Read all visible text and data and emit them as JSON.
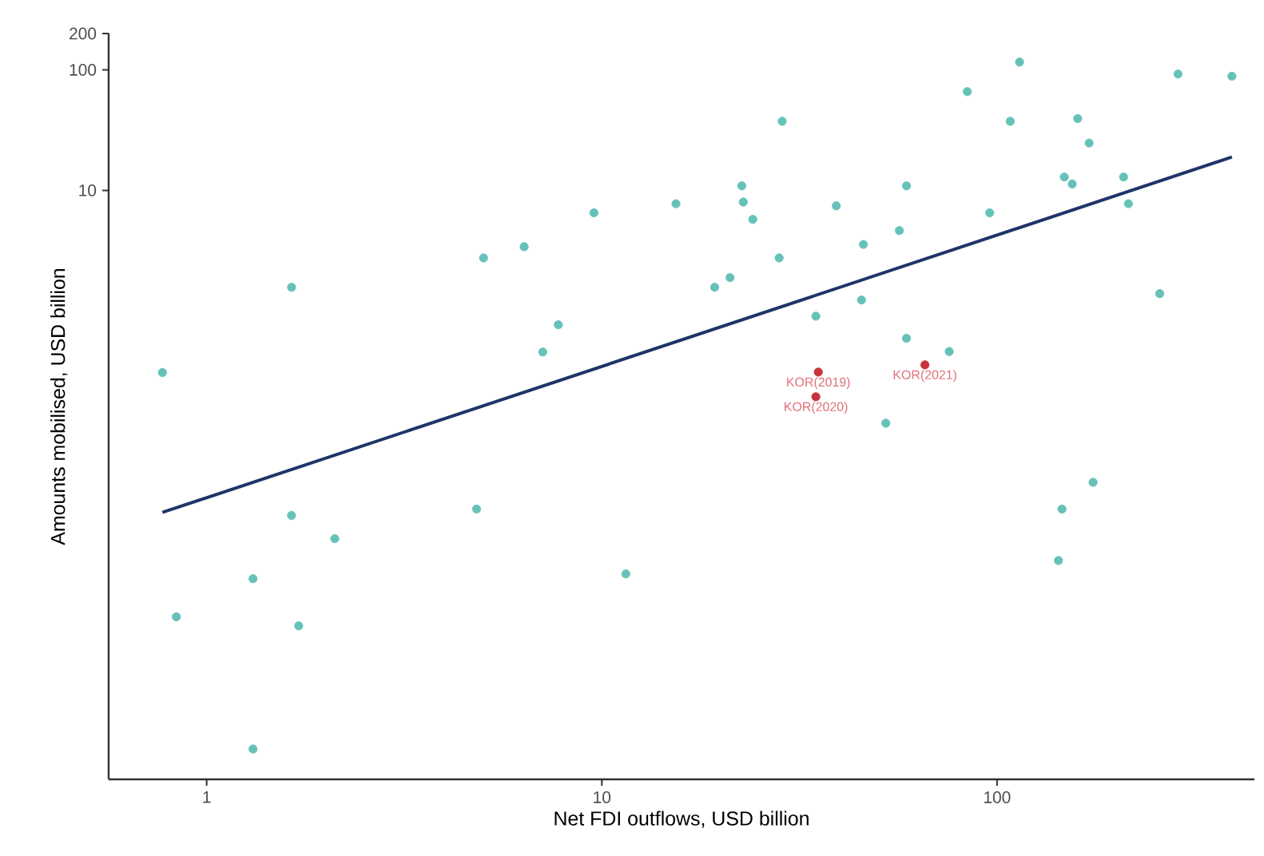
{
  "chart_data": {
    "type": "scatter",
    "xlabel": "Net FDI outflows, USD billion",
    "ylabel": "Amounts mobilised, USD billion",
    "log": "xy",
    "xlim": [
      0.565,
      448
    ],
    "ylim": [
      0.00013,
      200
    ],
    "xticks": [
      1,
      10,
      100
    ],
    "yticks": [
      10,
      100,
      200
    ],
    "series": [
      {
        "color": "#66c2b9",
        "marker": "circle",
        "x": [
          0.773,
          1.64,
          5.02,
          6.36,
          9.55,
          7.76,
          7.09,
          15.4,
          22.6,
          22.8,
          24.1,
          28.6,
          28.1,
          21.1,
          19.3,
          39.2,
          45.9,
          59.0,
          56.6,
          45.4,
          34.8,
          59.0,
          75.7,
          84.1,
          114,
          108,
          95.8,
          160,
          171,
          148,
          155,
          209,
          215,
          258,
          287,
          393,
          52.3,
          1.64,
          2.11,
          4.82,
          1.31,
          0.838,
          1.71,
          1.31,
          11.5,
          175,
          146,
          143
        ],
        "values": [
          0.308,
          1.57,
          2.75,
          3.41,
          6.51,
          0.768,
          0.456,
          7.75,
          10.9,
          8.0,
          5.75,
          37.4,
          2.75,
          1.89,
          1.57,
          7.45,
          3.56,
          10.9,
          4.64,
          1.23,
          0.904,
          0.593,
          0.46,
          65.9,
          116,
          37.4,
          6.51,
          39.4,
          24.7,
          12.9,
          11.3,
          12.9,
          7.75,
          1.39,
          92.3,
          88.5,
          0.117,
          0.0201,
          0.0129,
          0.0227,
          0.00601,
          0.0029,
          0.00244,
          0.000232,
          0.00659,
          0.0379,
          0.0227,
          0.00849
        ]
      },
      {
        "color": "#c8323c",
        "marker": "circle",
        "x": [
          35.3,
          34.8,
          65.7
        ],
        "values": [
          0.311,
          0.194,
          0.357
        ]
      },
      {
        "type": "line",
        "marker": "none",
        "color": "#1f3468",
        "x": [
          0.773,
          393
        ],
        "values": [
          0.0213,
          18.9
        ]
      }
    ],
    "annotations": [
      {
        "text": "KOR(2019)",
        "x": 35.3,
        "y": 0.311
      },
      {
        "text": "KOR(2020)",
        "x": 34.8,
        "y": 0.194
      },
      {
        "text": "KOR(2021)",
        "x": 65.7,
        "y": 0.357
      }
    ]
  }
}
